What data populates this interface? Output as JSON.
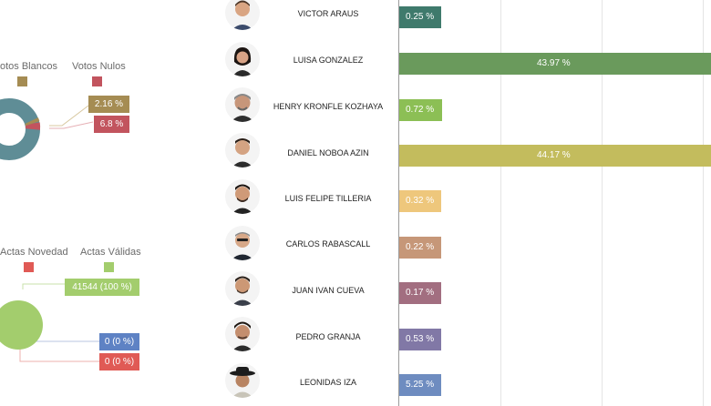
{
  "votes_panel": {
    "legend": [
      {
        "label": "otos Blancos",
        "color": "#a58c53"
      },
      {
        "label": "Votos Nulos",
        "color": "#c2545e"
      }
    ],
    "callouts": [
      "2.16 %",
      "6.8 %"
    ],
    "donut_colors": {
      "main": "#5f8d96",
      "blancos": "#a58c53",
      "nulos": "#c2545e"
    }
  },
  "actas_panel": {
    "legend": [
      {
        "label": "Actas Novedad",
        "color": "#e05a55"
      },
      {
        "label": "Actas Válidas",
        "color": "#a3cd6d"
      }
    ],
    "callouts": [
      {
        "text": "41544 (100 %)",
        "color": "#a3cd6d"
      },
      {
        "text": "0 (0 %)",
        "color": "#5e82c4"
      },
      {
        "text": "0 (0 %)",
        "color": "#e05a55"
      }
    ]
  },
  "chart_data": {
    "type": "bar",
    "orientation": "horizontal",
    "categories": [
      "VICTOR ARAUS",
      "LUISA GONZALEZ",
      "HENRY KRONFLE KOZHAYA",
      "DANIEL NOBOA AZIN",
      "LUIS FELIPE TILLERIA",
      "CARLOS RABASCALL",
      "JUAN IVAN CUEVA",
      "PEDRO GRANJA",
      "LEONIDAS IZA"
    ],
    "values": [
      0.25,
      43.97,
      0.72,
      44.17,
      0.32,
      0.22,
      0.17,
      0.53,
      5.25
    ],
    "value_labels": [
      "0.25 %",
      "43.97 %",
      "0.72 %",
      "44.17 %",
      "0.32 %",
      "0.22 %",
      "0.17 %",
      "0.53 %",
      "5.25 %"
    ],
    "colors": [
      "#3f7a6c",
      "#6a9a5c",
      "#8cbf55",
      "#c3bc5d",
      "#eec77c",
      "#c69778",
      "#a26e80",
      "#8178a6",
      "#6e8cc0"
    ],
    "grid": true
  }
}
